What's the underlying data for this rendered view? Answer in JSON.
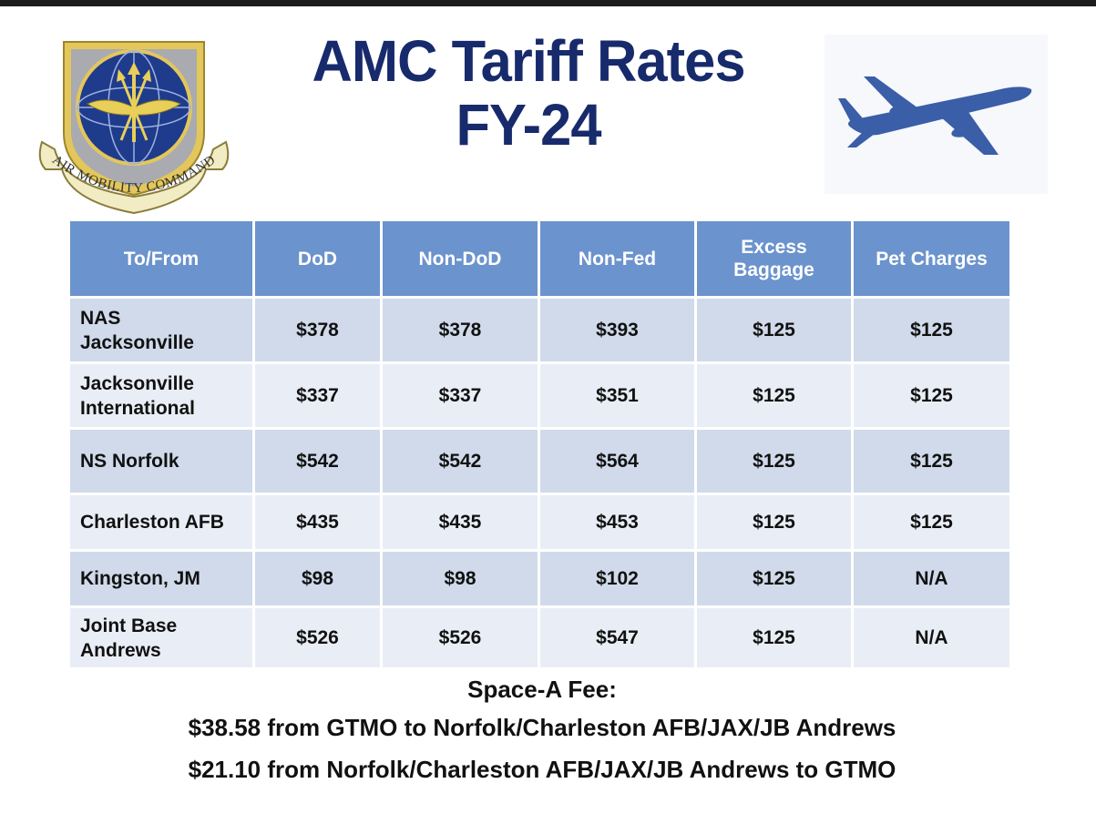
{
  "header": {
    "title_line1": "AMC Tariff Rates",
    "title_line2": "FY-24",
    "logo_text": "AIR MOBILITY COMMAND"
  },
  "table": {
    "columns": [
      "To/From",
      "DoD",
      "Non-DoD",
      "Non-Fed",
      "Excess Baggage",
      "Pet Charges"
    ],
    "rows": [
      [
        "NAS Jacksonville",
        "$378",
        "$378",
        "$393",
        "$125",
        "$125"
      ],
      [
        "Jacksonville International",
        "$337",
        "$337",
        "$351",
        "$125",
        "$125"
      ],
      [
        "NS Norfolk",
        "$542",
        "$542",
        "$564",
        "$125",
        "$125"
      ],
      [
        "Charleston AFB",
        "$435",
        "$435",
        "$453",
        "$125",
        "$125"
      ],
      [
        "Kingston, JM",
        "$98",
        "$98",
        "$102",
        "$125",
        "N/A"
      ],
      [
        "Joint Base Andrews",
        "$526",
        "$526",
        "$547",
        "$125",
        "N/A"
      ]
    ]
  },
  "fees": {
    "title": "Space-A Fee:",
    "line1": "$38.58 from GTMO to Norfolk/Charleston AFB/JAX/JB Andrews",
    "line2": "$21.10 from Norfolk/Charleston AFB/JAX/JB Andrews to GTMO"
  },
  "colors": {
    "title": "#172a6c",
    "header_bg": "#6b93cd",
    "row_dark": "#d0daea",
    "row_light": "#e9eef6",
    "plane": "#3a5ea8"
  }
}
